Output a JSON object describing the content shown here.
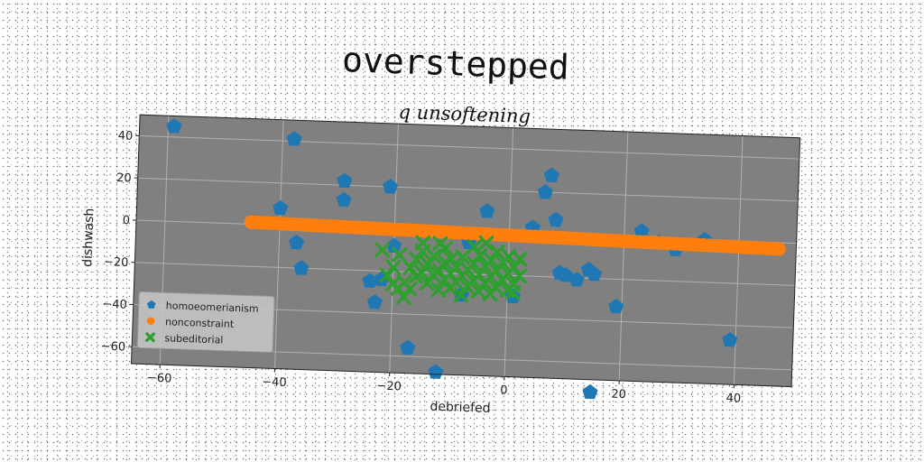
{
  "page": {
    "title": "overstepped"
  },
  "chart_data": {
    "type": "scatter",
    "title": "q unsoftening",
    "xlabel": "debriefed",
    "ylabel": "dishwash",
    "xlim": [
      -65,
      50
    ],
    "ylim": [
      -68,
      50
    ],
    "xticks": [
      -60,
      -40,
      -20,
      0,
      20,
      40
    ],
    "yticks": [
      -60,
      -40,
      -20,
      0,
      20,
      40
    ],
    "xtick_labels": [
      "−60",
      "−40",
      "−20",
      "0",
      "20",
      "40"
    ],
    "ytick_labels": [
      "−60",
      "−40",
      "−20",
      "0",
      "20",
      "40"
    ],
    "grid": true,
    "legend_position": "lower-left",
    "plot_background": "#808080",
    "series": [
      {
        "name": "homoeomerianism",
        "marker": "pentagon",
        "color": "#1f77b4",
        "points": [
          [
            -59,
            45
          ],
          [
            -38,
            41
          ],
          [
            -29,
            22
          ],
          [
            -29,
            13
          ],
          [
            -21,
            20
          ],
          [
            -40,
            8
          ],
          [
            -37,
            -8
          ],
          [
            -36,
            -20
          ],
          [
            -24,
            -25
          ],
          [
            -22,
            -24
          ],
          [
            -23,
            -35
          ],
          [
            -20,
            -8
          ],
          [
            -17,
            -56
          ],
          [
            -12,
            -67
          ],
          [
            -7,
            -5
          ],
          [
            -8,
            -30
          ],
          [
            -4,
            10
          ],
          [
            1,
            -30
          ],
          [
            4,
            3
          ],
          [
            6,
            20
          ],
          [
            7,
            28
          ],
          [
            8,
            7
          ],
          [
            9,
            -18
          ],
          [
            10,
            -19
          ],
          [
            12,
            -21
          ],
          [
            14,
            -16
          ],
          [
            15,
            -18
          ],
          [
            15,
            -74
          ],
          [
            19,
            -33
          ],
          [
            23,
            3
          ],
          [
            26,
            -2
          ],
          [
            29,
            -5
          ],
          [
            34,
            0
          ],
          [
            39,
            -47
          ]
        ]
      },
      {
        "name": "nonconstraint",
        "marker": "circle",
        "color": "#ff7f0e",
        "x_range": [
          -45,
          47
        ],
        "y_range": [
          1,
          -3
        ],
        "count": 92
      },
      {
        "name": "subeditorial",
        "marker": "x",
        "color": "#2ca02c",
        "points": [
          [
            -22,
            -10
          ],
          [
            -21,
            -22
          ],
          [
            -20,
            -26
          ],
          [
            -19,
            -28
          ],
          [
            -18,
            -25
          ],
          [
            -17,
            -18
          ],
          [
            -16,
            -14
          ],
          [
            -16,
            -22
          ],
          [
            -15,
            -10
          ],
          [
            -15,
            -20
          ],
          [
            -14,
            -25
          ],
          [
            -14,
            -16
          ],
          [
            -13,
            -12
          ],
          [
            -13,
            -21
          ],
          [
            -12,
            -19
          ],
          [
            -12,
            -28
          ],
          [
            -11,
            -15
          ],
          [
            -11,
            -23
          ],
          [
            -10,
            -13
          ],
          [
            -10,
            -20
          ],
          [
            -10,
            -27
          ],
          [
            -9,
            -17
          ],
          [
            -9,
            -24
          ],
          [
            -8,
            -12
          ],
          [
            -8,
            -21
          ],
          [
            -7,
            -18
          ],
          [
            -7,
            -26
          ],
          [
            -6,
            -15
          ],
          [
            -6,
            -23
          ],
          [
            -5,
            -11
          ],
          [
            -5,
            -20
          ],
          [
            -5,
            -28
          ],
          [
            -4,
            -16
          ],
          [
            -4,
            -24
          ],
          [
            -3,
            -13
          ],
          [
            -3,
            -21
          ],
          [
            -2,
            -9
          ],
          [
            -2,
            -18
          ],
          [
            -2,
            -26
          ],
          [
            -1,
            -14
          ],
          [
            -1,
            -22
          ],
          [
            0,
            -11
          ],
          [
            0,
            -19
          ],
          [
            0,
            -27
          ],
          [
            1,
            -16
          ],
          [
            1,
            -24
          ],
          [
            2,
            -12
          ],
          [
            2,
            -20
          ],
          [
            -19,
            -12
          ],
          [
            -17,
            -28
          ],
          [
            -15,
            -6
          ],
          [
            -11,
            -8
          ],
          [
            -6,
            -7
          ],
          [
            -3,
            -29
          ],
          [
            1,
            -28
          ],
          [
            -20,
            -18
          ],
          [
            -8,
            -30
          ],
          [
            -12,
            -6
          ],
          [
            -4,
            -5
          ],
          [
            -18,
            -32
          ]
        ]
      }
    ]
  }
}
